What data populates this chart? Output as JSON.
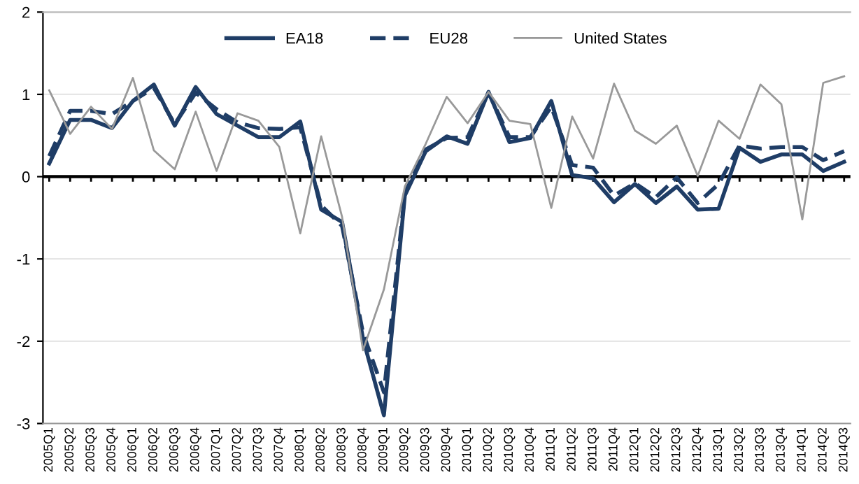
{
  "chart_data": {
    "type": "line",
    "categories": [
      "2005Q1",
      "2005Q2",
      "2005Q3",
      "2005Q4",
      "2006Q1",
      "2006Q2",
      "2006Q3",
      "2006Q4",
      "2007Q1",
      "2007Q2",
      "2007Q3",
      "2007Q4",
      "2008Q1",
      "2008Q2",
      "2008Q3",
      "2008Q4",
      "2009Q1",
      "2009Q2",
      "2009Q3",
      "2009Q4",
      "2010Q1",
      "2010Q2",
      "2010Q3",
      "2010Q4",
      "2011Q1",
      "2011Q2",
      "2011Q3",
      "2011Q4",
      "2012Q1",
      "2012Q2",
      "2012Q3",
      "2012Q4",
      "2013Q1",
      "2013Q2",
      "2013Q3",
      "2013Q4",
      "2014Q1",
      "2014Q2",
      "2014Q3"
    ],
    "series": [
      {
        "name": "EA18",
        "color": "#1f3d66",
        "line_style": "solid",
        "values": [
          0.16,
          0.69,
          0.69,
          0.59,
          0.92,
          1.12,
          0.62,
          1.09,
          0.76,
          0.62,
          0.48,
          0.48,
          0.67,
          -0.4,
          -0.55,
          -1.97,
          -2.9,
          -0.23,
          0.31,
          0.49,
          0.4,
          1.03,
          0.42,
          0.47,
          0.92,
          0.02,
          -0.02,
          -0.31,
          -0.09,
          -0.32,
          -0.12,
          -0.4,
          -0.39,
          0.35,
          0.18,
          0.27,
          0.27,
          0.07,
          0.18
        ]
      },
      {
        "name": "EU28",
        "color": "#1f3d66",
        "line_style": "dashed",
        "values": [
          0.25,
          0.8,
          0.8,
          0.76,
          0.92,
          1.08,
          0.64,
          1.02,
          0.82,
          0.66,
          0.59,
          0.58,
          0.6,
          -0.35,
          -0.6,
          -1.9,
          -2.62,
          -0.2,
          0.33,
          0.47,
          0.48,
          1.02,
          0.48,
          0.48,
          0.85,
          0.14,
          0.11,
          -0.23,
          -0.08,
          -0.25,
          -0.01,
          -0.32,
          -0.09,
          0.38,
          0.34,
          0.36,
          0.36,
          0.2,
          0.31
        ]
      },
      {
        "name": "United States",
        "color": "#999999",
        "line_style": "solid",
        "values": [
          1.05,
          0.52,
          0.85,
          0.58,
          1.2,
          0.32,
          0.09,
          0.79,
          0.07,
          0.77,
          0.68,
          0.36,
          -0.69,
          0.49,
          -0.49,
          -2.11,
          -1.37,
          -0.12,
          0.4,
          0.97,
          0.65,
          1.03,
          0.68,
          0.64,
          -0.38,
          0.73,
          0.22,
          1.13,
          0.56,
          0.4,
          0.62,
          0.01,
          0.68,
          0.46,
          1.12,
          0.88,
          -0.52,
          1.14,
          1.22
        ]
      }
    ],
    "ylim": [
      -3,
      2
    ],
    "yticks": [
      -3,
      -2,
      -1,
      0,
      1,
      2
    ],
    "grid": "y",
    "legend": "top",
    "ref_lines": [
      {
        "axis": "y",
        "value": 0,
        "color": "#000000"
      }
    ]
  }
}
